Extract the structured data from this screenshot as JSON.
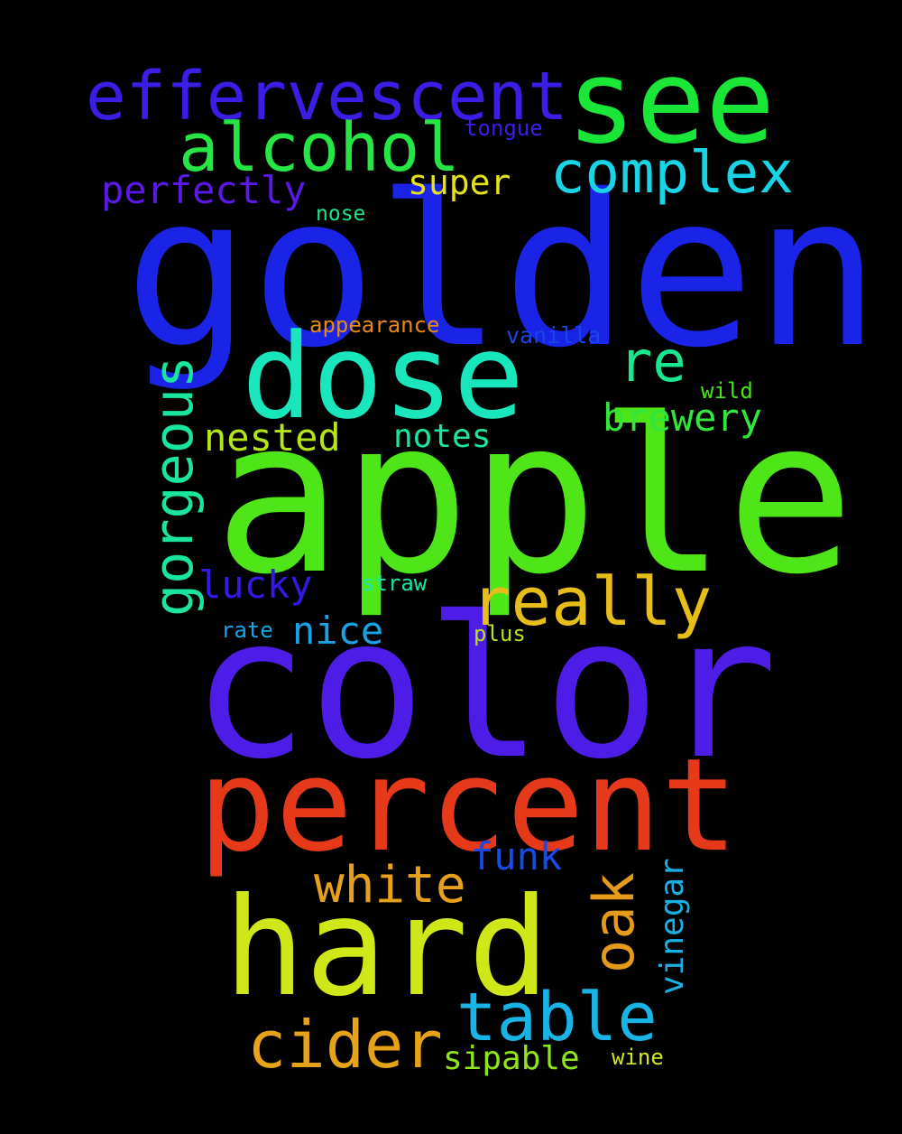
{
  "words": [
    {
      "text": "golden",
      "color": "#1a24e6"
    },
    {
      "text": "apple",
      "color": "#4ee619"
    },
    {
      "text": "color",
      "color": "#4d1ce6"
    },
    {
      "text": "percent",
      "color": "#e6391a"
    },
    {
      "text": "hard",
      "color": "#cfe619"
    },
    {
      "text": "dose",
      "color": "#19e6bd"
    },
    {
      "text": "see",
      "color": "#1ae638"
    },
    {
      "text": "effervescent",
      "color": "#3a1ee6"
    },
    {
      "text": "alcohol",
      "color": "#25e642"
    },
    {
      "text": "complex",
      "color": "#19d4e6"
    },
    {
      "text": "really",
      "color": "#e6bd19"
    },
    {
      "text": "table",
      "color": "#19b4e6"
    },
    {
      "text": "cider",
      "color": "#e6a219"
    },
    {
      "text": "oak",
      "color": "#e69a19"
    },
    {
      "text": "white",
      "color": "#e6a019"
    },
    {
      "text": "gorgeous",
      "color": "#19e69c"
    },
    {
      "text": "re",
      "color": "#19e68e"
    },
    {
      "text": "brewery",
      "color": "#33e63c"
    },
    {
      "text": "perfectly",
      "color": "#5a19e6"
    },
    {
      "text": "super",
      "color": "#e6e219"
    },
    {
      "text": "nested",
      "color": "#b2e619"
    },
    {
      "text": "notes",
      "color": "#19e6a6"
    },
    {
      "text": "lucky",
      "color": "#3219e6"
    },
    {
      "text": "nice",
      "color": "#19a2e6"
    },
    {
      "text": "funk",
      "color": "#1a4ae6"
    },
    {
      "text": "vinegar",
      "color": "#19b0e6"
    },
    {
      "text": "sipable",
      "color": "#8ee619"
    },
    {
      "text": "tongue",
      "color": "#3a1ee6"
    },
    {
      "text": "nose",
      "color": "#19e68c"
    },
    {
      "text": "appearance",
      "color": "#e68a19"
    },
    {
      "text": "vanilla",
      "color": "#1946e6"
    },
    {
      "text": "wild",
      "color": "#45e619"
    },
    {
      "text": "straw",
      "color": "#19e6a8"
    },
    {
      "text": "rate",
      "color": "#19a6e6"
    },
    {
      "text": "plus",
      "color": "#b8e619"
    },
    {
      "text": "wine",
      "color": "#d4e619"
    }
  ]
}
